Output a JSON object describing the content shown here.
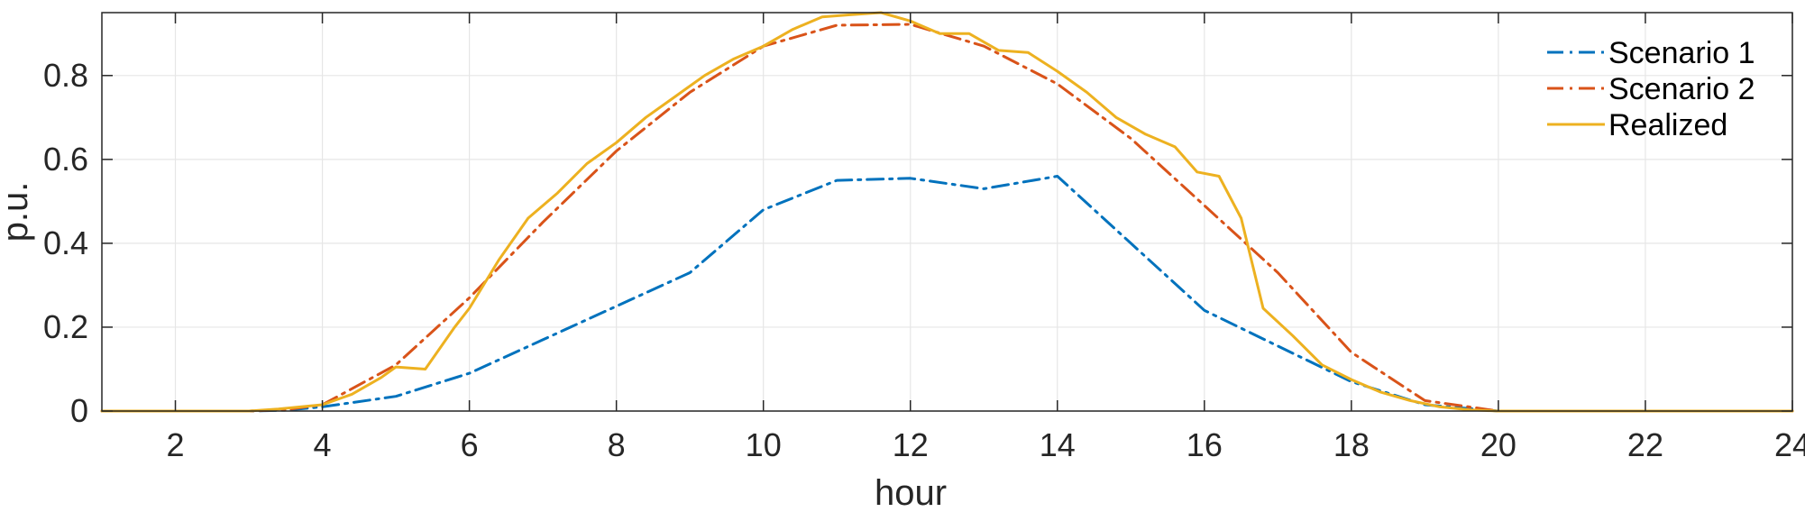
{
  "chart_data": {
    "type": "line",
    "title": "",
    "xlabel": "hour",
    "ylabel": "p.u.",
    "xlim": [
      1,
      24
    ],
    "ylim": [
      0,
      0.95
    ],
    "xticks": [
      2,
      4,
      6,
      8,
      10,
      12,
      14,
      16,
      18,
      20,
      22,
      24
    ],
    "yticks": [
      0,
      0.2,
      0.4,
      0.6,
      0.8
    ],
    "xtick_labels": [
      "2",
      "4",
      "6",
      "8",
      "10",
      "12",
      "14",
      "16",
      "18",
      "20",
      "22",
      "24"
    ],
    "ytick_labels": [
      "0",
      "0.2",
      "0.4",
      "0.6",
      "0.8"
    ],
    "grid": true,
    "legend_position": "top-right",
    "series": [
      {
        "name": "Scenario 1",
        "color": "#0072BD",
        "style": "dash-dot",
        "x": [
          1,
          2,
          3,
          3.5,
          4,
          5,
          6,
          7,
          8,
          9,
          10,
          11,
          12,
          13,
          14,
          15,
          16,
          17,
          18,
          19,
          20,
          21,
          22,
          23,
          24
        ],
        "y": [
          0,
          0,
          0,
          0.002,
          0.01,
          0.035,
          0.09,
          0.17,
          0.25,
          0.33,
          0.48,
          0.55,
          0.555,
          0.53,
          0.56,
          0.4,
          0.24,
          0.155,
          0.07,
          0.015,
          0,
          0,
          0,
          0,
          0
        ]
      },
      {
        "name": "Scenario 2",
        "color": "#D95319",
        "style": "dash-dot",
        "x": [
          1,
          2,
          3,
          3.5,
          4,
          5,
          6,
          7,
          8,
          9,
          10,
          11,
          12,
          13,
          14,
          15,
          16,
          17,
          18,
          19,
          20,
          21,
          22,
          23,
          24
        ],
        "y": [
          0,
          0,
          0,
          0.003,
          0.015,
          0.11,
          0.27,
          0.45,
          0.62,
          0.76,
          0.87,
          0.92,
          0.922,
          0.87,
          0.78,
          0.65,
          0.49,
          0.33,
          0.14,
          0.025,
          0,
          0,
          0,
          0,
          0
        ]
      },
      {
        "name": "Realized",
        "color": "#EDB120",
        "style": "solid",
        "x": [
          1,
          2,
          3,
          3.4,
          4,
          4.4,
          4.8,
          5,
          5.4,
          5.8,
          6,
          6.4,
          6.8,
          7.2,
          7.6,
          8,
          8.4,
          8.8,
          9.2,
          9.6,
          10,
          10.4,
          10.8,
          11.2,
          11.6,
          12,
          12.4,
          12.8,
          13.2,
          13.6,
          14,
          14.4,
          14.8,
          15.2,
          15.6,
          15.9,
          16.2,
          16.5,
          16.8,
          17.2,
          17.6,
          18,
          18.4,
          18.8,
          19.2,
          19.6,
          20,
          21,
          22,
          23,
          24
        ],
        "y": [
          0,
          0,
          0,
          0.005,
          0.015,
          0.04,
          0.08,
          0.105,
          0.1,
          0.2,
          0.245,
          0.36,
          0.46,
          0.52,
          0.59,
          0.64,
          0.7,
          0.75,
          0.8,
          0.84,
          0.87,
          0.91,
          0.94,
          0.945,
          0.95,
          0.93,
          0.9,
          0.9,
          0.86,
          0.855,
          0.81,
          0.76,
          0.7,
          0.66,
          0.63,
          0.57,
          0.56,
          0.46,
          0.245,
          0.18,
          0.11,
          0.075,
          0.045,
          0.025,
          0.01,
          0.003,
          0,
          0,
          0,
          0,
          0
        ]
      }
    ]
  }
}
